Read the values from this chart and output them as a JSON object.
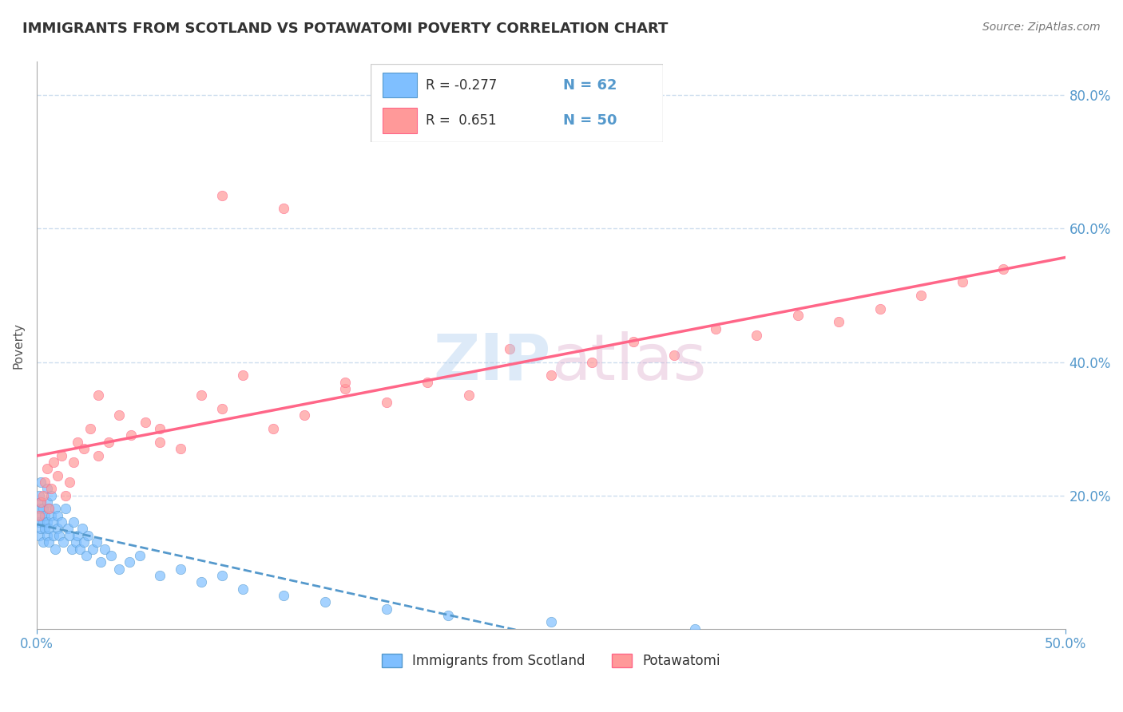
{
  "title": "IMMIGRANTS FROM SCOTLAND VS POTAWATOMI POVERTY CORRELATION CHART",
  "source_text": "Source: ZipAtlas.com",
  "ylabel": "Poverty",
  "xlim": [
    0.0,
    0.5
  ],
  "ylim": [
    0.0,
    0.85
  ],
  "xtick_labels": [
    "0.0%",
    "50.0%"
  ],
  "xtick_positions": [
    0.0,
    0.5
  ],
  "ytick_labels": [
    "20.0%",
    "40.0%",
    "60.0%",
    "80.0%"
  ],
  "ytick_positions": [
    0.2,
    0.4,
    0.6,
    0.8
  ],
  "legend_r1": "R = -0.277",
  "legend_n1": "N = 62",
  "legend_r2": "R =  0.651",
  "legend_n2": "N = 50",
  "color_scotland": "#7fbfff",
  "color_potawatomi": "#ff9999",
  "color_scotland_line": "#5599cc",
  "color_potawatomi_line": "#ff6688",
  "background_color": "#ffffff",
  "grid_color": "#ccddee",
  "scotland_x": [
    0.001,
    0.001,
    0.001,
    0.001,
    0.002,
    0.002,
    0.002,
    0.002,
    0.003,
    0.003,
    0.003,
    0.004,
    0.004,
    0.005,
    0.005,
    0.005,
    0.005,
    0.006,
    0.006,
    0.006,
    0.007,
    0.007,
    0.008,
    0.008,
    0.009,
    0.009,
    0.01,
    0.01,
    0.011,
    0.012,
    0.013,
    0.014,
    0.015,
    0.016,
    0.017,
    0.018,
    0.019,
    0.02,
    0.021,
    0.022,
    0.023,
    0.024,
    0.025,
    0.027,
    0.029,
    0.031,
    0.033,
    0.036,
    0.04,
    0.045,
    0.05,
    0.06,
    0.07,
    0.08,
    0.09,
    0.1,
    0.12,
    0.14,
    0.17,
    0.2,
    0.25,
    0.32
  ],
  "scotland_y": [
    0.16,
    0.18,
    0.14,
    0.2,
    0.17,
    0.15,
    0.22,
    0.19,
    0.16,
    0.18,
    0.13,
    0.17,
    0.15,
    0.19,
    0.14,
    0.16,
    0.21,
    0.15,
    0.18,
    0.13,
    0.17,
    0.2,
    0.14,
    0.16,
    0.18,
    0.12,
    0.17,
    0.15,
    0.14,
    0.16,
    0.13,
    0.18,
    0.15,
    0.14,
    0.12,
    0.16,
    0.13,
    0.14,
    0.12,
    0.15,
    0.13,
    0.11,
    0.14,
    0.12,
    0.13,
    0.1,
    0.12,
    0.11,
    0.09,
    0.1,
    0.11,
    0.08,
    0.09,
    0.07,
    0.08,
    0.06,
    0.05,
    0.04,
    0.03,
    0.02,
    0.01,
    0.0
  ],
  "potawatomi_x": [
    0.001,
    0.002,
    0.003,
    0.004,
    0.005,
    0.006,
    0.007,
    0.008,
    0.01,
    0.012,
    0.014,
    0.016,
    0.018,
    0.02,
    0.023,
    0.026,
    0.03,
    0.035,
    0.04,
    0.046,
    0.053,
    0.06,
    0.07,
    0.08,
    0.09,
    0.1,
    0.115,
    0.13,
    0.15,
    0.17,
    0.19,
    0.21,
    0.23,
    0.25,
    0.27,
    0.29,
    0.31,
    0.33,
    0.35,
    0.37,
    0.39,
    0.41,
    0.43,
    0.45,
    0.47,
    0.03,
    0.06,
    0.09,
    0.12,
    0.15
  ],
  "potawatomi_y": [
    0.17,
    0.19,
    0.2,
    0.22,
    0.24,
    0.18,
    0.21,
    0.25,
    0.23,
    0.26,
    0.2,
    0.22,
    0.25,
    0.28,
    0.27,
    0.3,
    0.26,
    0.28,
    0.32,
    0.29,
    0.31,
    0.28,
    0.27,
    0.35,
    0.33,
    0.38,
    0.3,
    0.32,
    0.36,
    0.34,
    0.37,
    0.35,
    0.42,
    0.38,
    0.4,
    0.43,
    0.41,
    0.45,
    0.44,
    0.47,
    0.46,
    0.48,
    0.5,
    0.52,
    0.54,
    0.35,
    0.3,
    0.65,
    0.63,
    0.37
  ]
}
